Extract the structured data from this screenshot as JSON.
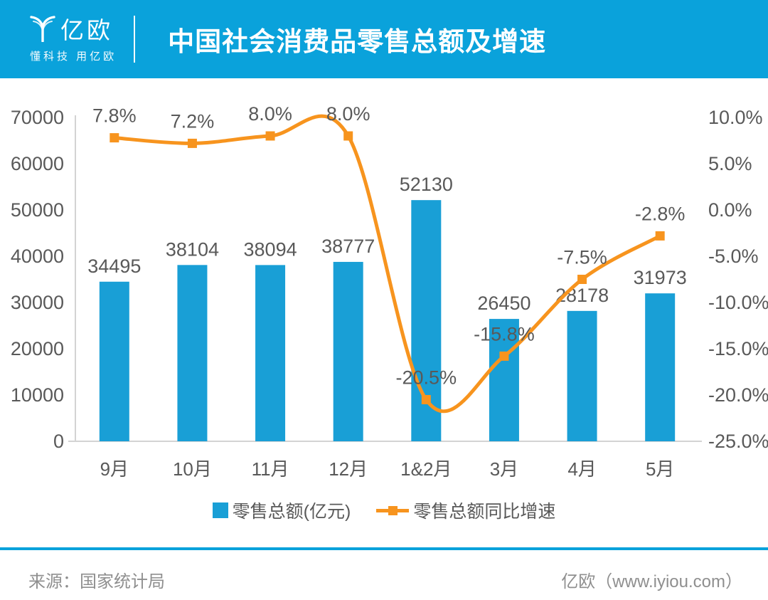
{
  "header": {
    "brand": "亿欧",
    "tagline": "懂科技 用亿欧",
    "title": "中国社会消费品零售总额及增速"
  },
  "footer": {
    "source": "来源：国家统计局",
    "site": "亿欧（www.iyiou.com）"
  },
  "colors": {
    "header_bg": "#0aa2db",
    "bar": "#199fd6",
    "line": "#f7941e",
    "label": "#595959",
    "axis_line": "#d3d3d3",
    "footer_text": "#8f8f8f"
  },
  "chart_data": {
    "type": "bar",
    "subtype": "combo-bar-line",
    "title": "中国社会消费品零售总额及增速",
    "categories": [
      "9月",
      "10月",
      "11月",
      "12月",
      "1&2月",
      "3月",
      "4月",
      "5月"
    ],
    "series": [
      {
        "name": "零售总额(亿元)",
        "type": "bar",
        "axis": "left",
        "color": "#199fd6",
        "values": [
          34495,
          38104,
          38094,
          38777,
          52130,
          26450,
          28178,
          31973
        ],
        "labels": [
          "34495",
          "38104",
          "38094",
          "38777",
          "52130",
          "26450",
          "28178",
          "31973"
        ]
      },
      {
        "name": "零售总额同比增速",
        "type": "line",
        "axis": "right",
        "color": "#f7941e",
        "smooth": true,
        "values": [
          7.8,
          7.2,
          8.0,
          8.0,
          -20.5,
          -15.8,
          -7.5,
          -2.8
        ],
        "labels": [
          "7.8%",
          "7.2%",
          "8.0%",
          "8.0%",
          "-20.5%",
          "-15.8%",
          "-7.5%",
          "-2.8%"
        ]
      }
    ],
    "left_axis": {
      "min": 0,
      "max": 70000,
      "step": 10000,
      "ticks": [
        "0",
        "10000",
        "20000",
        "30000",
        "40000",
        "50000",
        "60000",
        "70000"
      ]
    },
    "right_axis": {
      "min": -25,
      "max": 10,
      "step": 5,
      "ticks": [
        "-25.0%",
        "-20.0%",
        "-15.0%",
        "-10.0%",
        "-5.0%",
        "0.0%",
        "5.0%",
        "10.0%"
      ]
    },
    "grid": false,
    "legend_position": "bottom"
  }
}
